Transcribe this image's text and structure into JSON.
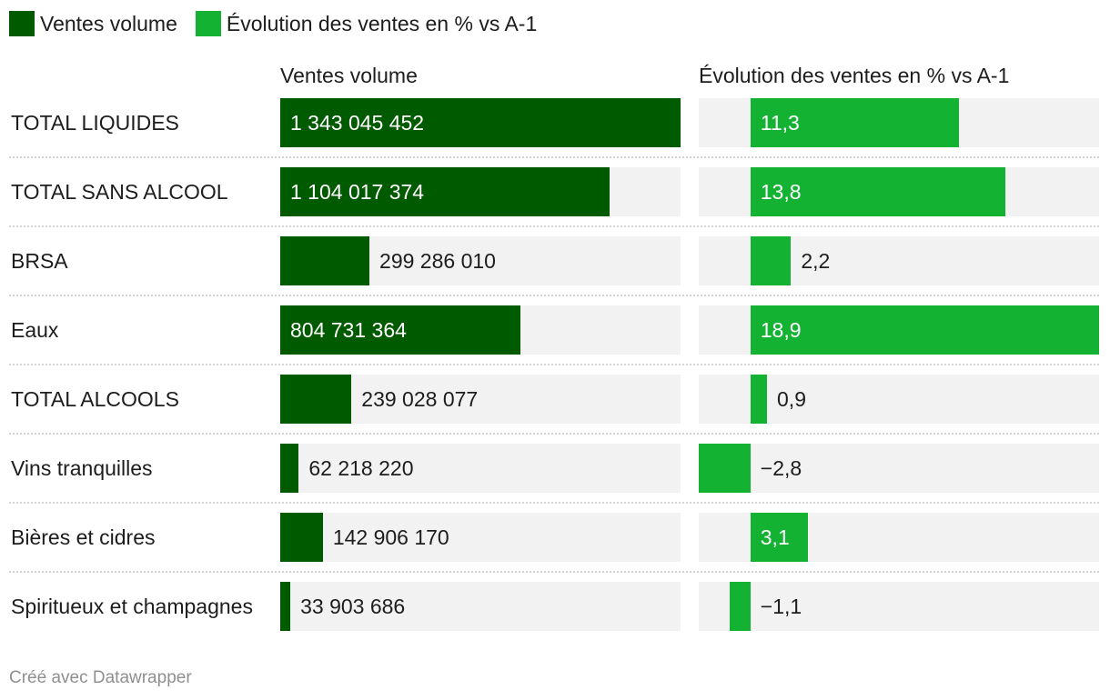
{
  "legend": {
    "items": [
      {
        "label": "Ventes volume",
        "color": "#005a00"
      },
      {
        "label": "Évolution des ventes en % vs A-1",
        "color": "#13b233"
      }
    ]
  },
  "columns": {
    "volume_header": "Ventes volume",
    "evolution_header": "Évolution des ventes en % vs A-1"
  },
  "chart_data": {
    "type": "bar",
    "categories": [
      "TOTAL LIQUIDES",
      "TOTAL SANS ALCOOL",
      "BRSA",
      "Eaux",
      "TOTAL ALCOOLS",
      "Vins tranquilles",
      "Bières et cidres",
      "Spiritueux et champagnes"
    ],
    "series": [
      {
        "name": "Ventes volume",
        "color": "#005a00",
        "values": [
          1343045452,
          1104017374,
          299286010,
          804731364,
          239028077,
          62218220,
          142906170,
          33903686
        ],
        "labels": [
          "1 343 045 452",
          "1 104 017 374",
          "299 286 010",
          "804 731 364",
          "239 028 077",
          "62 218 220",
          "142 906 170",
          "33 903 686"
        ],
        "xlim": [
          0,
          1343045452
        ]
      },
      {
        "name": "Évolution des ventes en % vs A-1",
        "color": "#13b233",
        "values": [
          11.3,
          13.8,
          2.2,
          18.9,
          0.9,
          -2.8,
          3.1,
          -1.1
        ],
        "labels": [
          "11,3",
          "13,8",
          "2,2",
          "18,9",
          "0,9",
          "−2,8",
          "3,1",
          "−1,1"
        ],
        "xlim": [
          -2.8,
          18.9
        ]
      }
    ]
  },
  "footer": "Créé avec Datawrapper"
}
